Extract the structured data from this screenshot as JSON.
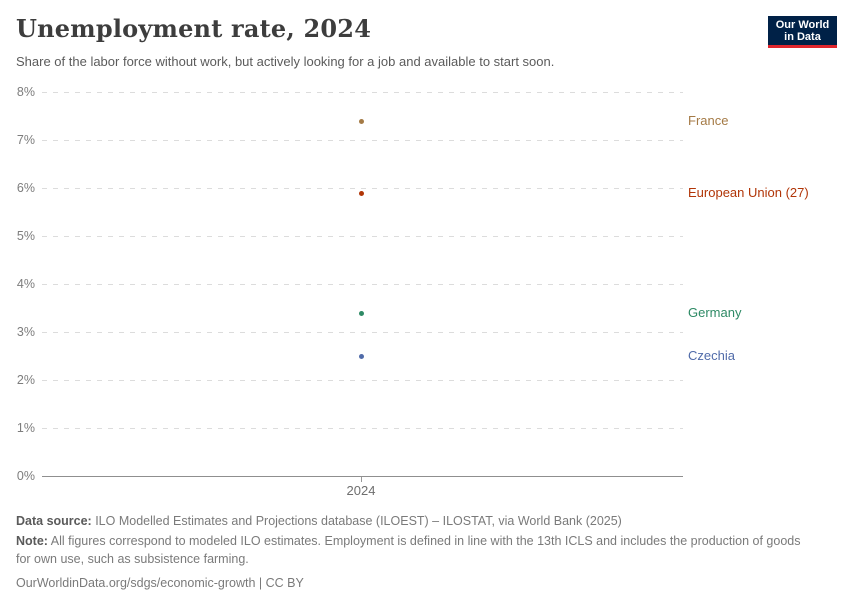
{
  "header": {
    "title": "Unemployment rate, 2024",
    "subtitle": "Share of the labor force without work, but actively looking for a job and available to start soon.",
    "logo": {
      "line1": "Our World",
      "line2": "in Data",
      "bg_color": "#002147",
      "accent_color": "#e0262d"
    }
  },
  "chart_data": {
    "type": "scatter",
    "title": "Unemployment rate, 2024",
    "x": [
      2024
    ],
    "x_tick_label": "2024",
    "xlabel": "",
    "ylabel": "",
    "ylim": [
      0,
      8
    ],
    "ytick_step": 1,
    "ytick_suffix": "%",
    "grid": "dashed horizontal gridlines, solid zero baseline",
    "legend_position": "entity labels at right of plot",
    "series": [
      {
        "name": "France",
        "values": [
          7.4
        ],
        "color": "#a47a45"
      },
      {
        "name": "European Union (27)",
        "values": [
          5.9
        ],
        "color": "#b13507"
      },
      {
        "name": "Germany",
        "values": [
          3.4
        ],
        "color": "#2e8a65"
      },
      {
        "name": "Czechia",
        "values": [
          2.5
        ],
        "color": "#506ba9"
      }
    ]
  },
  "footer": {
    "data_source_label": "Data source:",
    "data_source_text": " ILO Modelled Estimates and Projections database (ILOEST) – ILOSTAT, via World Bank (2025)",
    "note_label": "Note:",
    "note_text": " All figures correspond to modeled ILO estimates. Employment is defined in line with the 13th ICLS and includes the production of goods for own use, such as subsistence farming.",
    "link_text": "OurWorldinData.org/sdgs/economic-growth | CC BY"
  }
}
